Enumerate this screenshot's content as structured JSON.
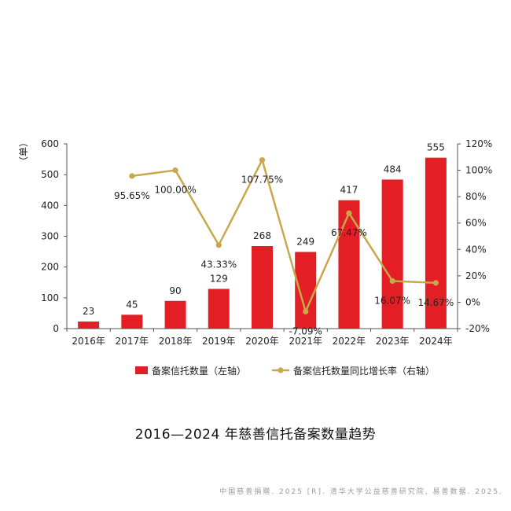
{
  "chart_data": {
    "type": "bar",
    "categories": [
      "2016年",
      "2017年",
      "2018年",
      "2019年",
      "2020年",
      "2021年",
      "2022年",
      "2023年",
      "2024年"
    ],
    "series": [
      {
        "name": "备案信托数量（左轴）",
        "type": "bar",
        "axis": "left",
        "color": "#e31e24",
        "values": [
          23,
          45,
          90,
          129,
          268,
          249,
          417,
          484,
          555
        ],
        "labels": [
          "23",
          "45",
          "90",
          "129",
          "268",
          "249",
          "417",
          "484",
          "555"
        ]
      },
      {
        "name": "备案信托数量同比增长率（右轴）",
        "type": "line",
        "axis": "right",
        "color": "#c8a84b",
        "values": [
          null,
          95.65,
          100.0,
          43.33,
          107.75,
          -7.09,
          67.47,
          16.07,
          14.67
        ],
        "labels": [
          "",
          "95.65%",
          "100.00%",
          "43.33%",
          "107.75%",
          "-7.09%",
          "67.47%",
          "16.07%",
          "14.67%"
        ]
      }
    ],
    "y_left": {
      "label": "（单）",
      "ylim": [
        0,
        600
      ],
      "ticks": [
        "0",
        "100",
        "200",
        "300",
        "400",
        "500",
        "600"
      ]
    },
    "y_right": {
      "ylim": [
        -20,
        120
      ],
      "ticks": [
        "-20%",
        "0%",
        "20%",
        "40%",
        "60%",
        "80%",
        "100%",
        "120%"
      ]
    },
    "grid": false,
    "legend_position": "bottom"
  },
  "caption": "2016—2024 年慈善信托备案数量趋势",
  "source": "中国慈善捐赠. 2025 [R]. 清华大学公益慈善研究院, 易善数据. 2025."
}
